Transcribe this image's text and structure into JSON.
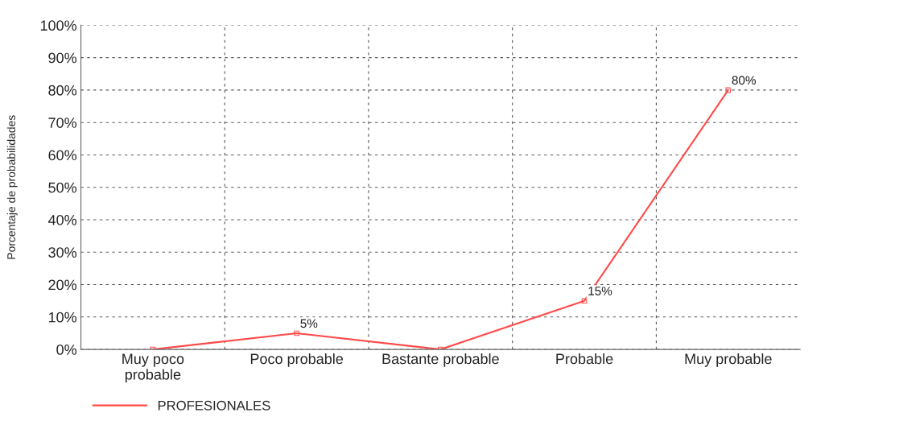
{
  "chart_data": {
    "type": "line",
    "ylabel": "Porcentaje de probabilidades",
    "categories": [
      "Muy poco\nprobable",
      "Poco probable",
      "Bastante probable",
      "Probable",
      "Muy probable"
    ],
    "series": [
      {
        "name": "PROFESIONALES",
        "color": "#ff4a4a",
        "values": [
          0,
          5,
          0,
          15,
          80
        ],
        "value_labels": [
          null,
          "5%",
          null,
          "15%",
          "80%"
        ]
      }
    ],
    "ylim": [
      0,
      100
    ],
    "yticks": [
      {
        "value": 0,
        "label": "0%"
      },
      {
        "value": 10,
        "label": "10%"
      },
      {
        "value": 20,
        "label": "20%"
      },
      {
        "value": 30,
        "label": "30%"
      },
      {
        "value": 40,
        "label": "40%"
      },
      {
        "value": 50,
        "label": "50%"
      },
      {
        "value": 60,
        "label": "60%"
      },
      {
        "value": 70,
        "label": "70%"
      },
      {
        "value": 80,
        "label": "80%"
      },
      {
        "value": 90,
        "label": "90%"
      },
      {
        "value": 100,
        "label": "100%"
      }
    ],
    "grid": true,
    "legend": "bottom left",
    "marker": "square",
    "line_style": "solid"
  }
}
